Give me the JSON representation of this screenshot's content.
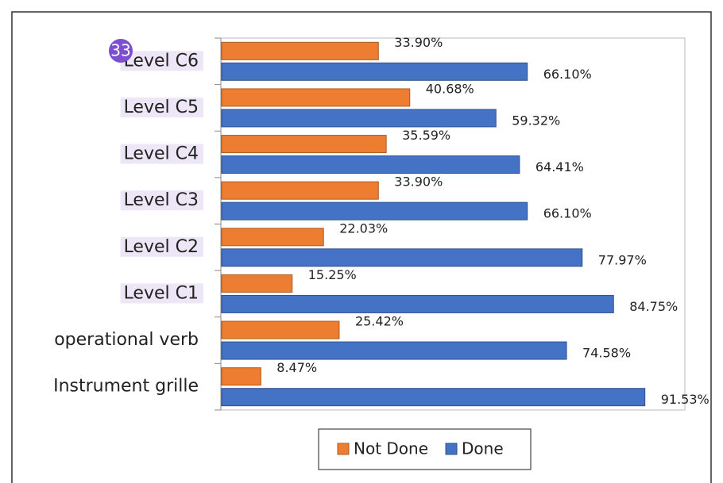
{
  "badge": "33",
  "chart_data": {
    "type": "hbar",
    "categories": [
      "Level C6",
      "Level C5",
      "Level C4",
      "Level C3",
      "Level C2",
      "Level C1",
      "operational verb",
      "Instrument grille"
    ],
    "series": [
      {
        "name": "Not Done",
        "color": "#ed7d31",
        "values": [
          33.9,
          40.68,
          35.59,
          33.9,
          22.03,
          15.25,
          25.42,
          8.47
        ],
        "value_labels": [
          "33.90%",
          "40.68%",
          "35.59%",
          "33.90%",
          "22.03%",
          "15.25%",
          "25.42%",
          "8.47%"
        ]
      },
      {
        "name": "Done",
        "color": "#4472c4",
        "values": [
          66.1,
          59.32,
          64.41,
          66.1,
          77.97,
          84.75,
          74.58,
          91.53
        ],
        "value_labels": [
          "66.10%",
          "59.32%",
          "64.41%",
          "66.10%",
          "77.97%",
          "84.75%",
          "74.58%",
          "91.53%"
        ]
      }
    ],
    "xlim": [
      0,
      100
    ],
    "legend": "bottom"
  }
}
